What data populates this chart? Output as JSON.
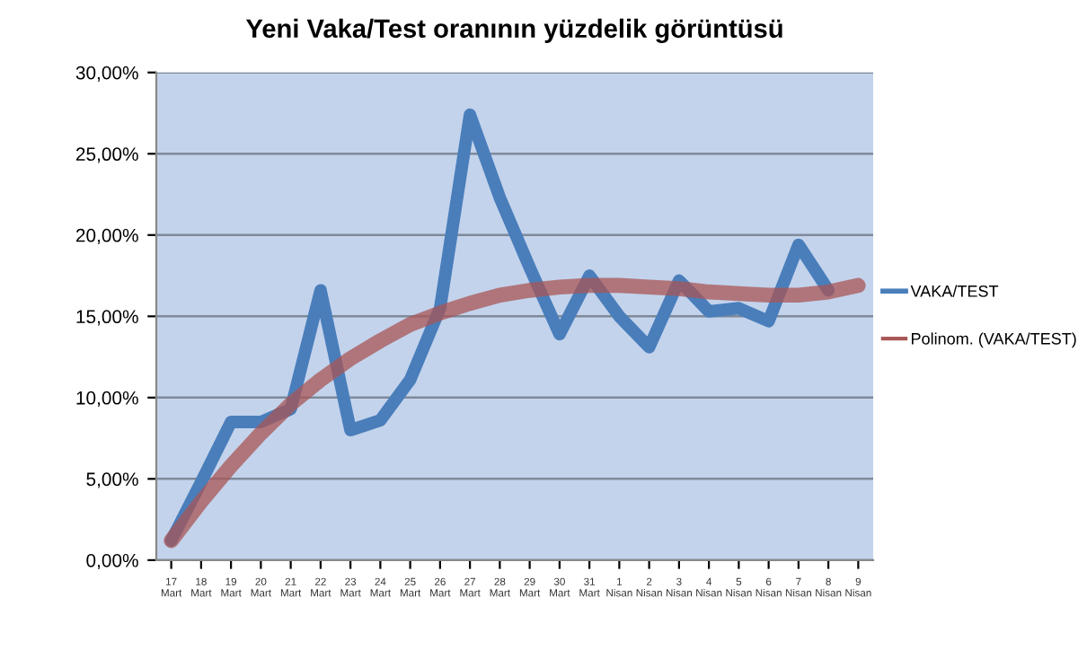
{
  "chart_data": {
    "type": "line",
    "title": "Yeni Vaka/Test oranının yüzdelik görüntüsü",
    "categories": [
      "17\nMart",
      "18\nMart",
      "19\nMart",
      "20\nMart",
      "21\nMart",
      "22\nMart",
      "23\nMart",
      "24\nMart",
      "25\nMart",
      "26\nMart",
      "27\nMart",
      "28\nMart",
      "29\nMart",
      "30\nMart",
      "31\nMart",
      "1\nNisan",
      "2\nNisan",
      "3\nNisan",
      "4\nNisan",
      "5\nNisan",
      "6\nNisan",
      "7\nNisan",
      "8\nNisan",
      "9\nNisan"
    ],
    "series": [
      {
        "name": "VAKA/TEST",
        "color": "#4a7ebb",
        "values": [
          1.2,
          4.8,
          8.5,
          8.5,
          9.3,
          16.6,
          8.0,
          8.6,
          11.1,
          15.5,
          27.4,
          22.3,
          18.0,
          13.9,
          17.5,
          15.0,
          13.1,
          17.2,
          15.3,
          15.5,
          14.7,
          19.4,
          16.6,
          null
        ]
      },
      {
        "name": "Polinom. (VAKA/TEST)",
        "color": "#a85656",
        "values": [
          1.2,
          3.6,
          5.8,
          7.8,
          9.6,
          11.1,
          12.4,
          13.5,
          14.5,
          15.2,
          15.8,
          16.3,
          16.6,
          16.8,
          16.9,
          16.9,
          16.8,
          16.7,
          16.5,
          16.4,
          16.3,
          16.3,
          16.5,
          16.9
        ]
      }
    ],
    "ylim": [
      0,
      30
    ],
    "yticks": [
      {
        "value": 0,
        "label": "0,00%"
      },
      {
        "value": 5,
        "label": "5,00%"
      },
      {
        "value": 10,
        "label": "10,00%"
      },
      {
        "value": 15,
        "label": "15,00%"
      },
      {
        "value": 20,
        "label": "20,00%"
      },
      {
        "value": 25,
        "label": "25,00%"
      },
      {
        "value": 30,
        "label": "30,00%"
      }
    ],
    "grid": "y",
    "legend": "right",
    "marker": "none",
    "line_style": "solid"
  }
}
